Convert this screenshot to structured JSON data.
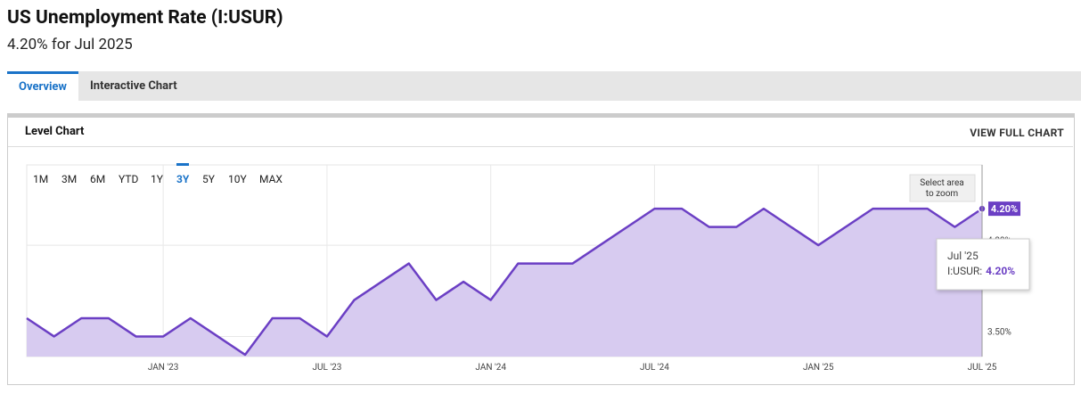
{
  "header": {
    "title": "US Unemployment Rate (I:USUR)",
    "subtitle": "4.20% for Jul 2025"
  },
  "tabs": [
    "Overview",
    "Interactive Chart"
  ],
  "panel": {
    "title": "Level Chart",
    "link": "VIEW FULL CHART"
  },
  "range_buttons": [
    "1M",
    "3M",
    "6M",
    "YTD",
    "1Y",
    "3Y",
    "5Y",
    "10Y",
    "MAX"
  ],
  "zoom_hint": [
    "Select area",
    "to zoom"
  ],
  "tooltip": {
    "date": "Jul '25",
    "series": "I:USUR:",
    "value": "4.20%"
  },
  "chart_data": {
    "type": "line",
    "color": "#6b3fc4",
    "fill": "#d7cbf0",
    "categories": [
      null,
      null,
      null,
      null,
      null,
      "JAN '23",
      null,
      null,
      null,
      null,
      null,
      "JUL '23",
      null,
      null,
      null,
      null,
      null,
      "JAN '24",
      null,
      null,
      null,
      null,
      null,
      "JUL '24",
      null,
      null,
      null,
      null,
      null,
      "JAN '25",
      null,
      null,
      null,
      null,
      null,
      "JUL '25"
    ],
    "values": [
      3.6,
      3.5,
      3.6,
      3.6,
      3.5,
      3.5,
      3.6,
      3.5,
      3.4,
      3.6,
      3.6,
      3.5,
      3.7,
      3.8,
      3.9,
      3.7,
      3.8,
      3.7,
      3.9,
      3.9,
      3.9,
      4.0,
      4.1,
      4.2,
      4.2,
      4.1,
      4.1,
      4.2,
      4.1,
      4.0,
      4.1,
      4.2,
      4.2,
      4.2,
      4.1,
      4.2
    ],
    "value_labels": [
      null,
      null,
      null,
      null,
      null,
      null,
      null,
      null,
      null,
      null,
      null,
      null,
      null,
      null,
      null,
      null,
      null,
      null,
      null,
      null,
      null,
      null,
      null,
      null,
      null,
      null,
      null,
      null,
      null,
      null,
      null,
      null,
      null,
      null,
      null,
      "4.20%"
    ],
    "ylim": [
      3.39,
      4.44
    ],
    "yticks": [
      {
        "value": 3.5,
        "label": "3.50%"
      },
      {
        "value": 4.0,
        "label": "4.00%"
      }
    ],
    "grid": true
  }
}
